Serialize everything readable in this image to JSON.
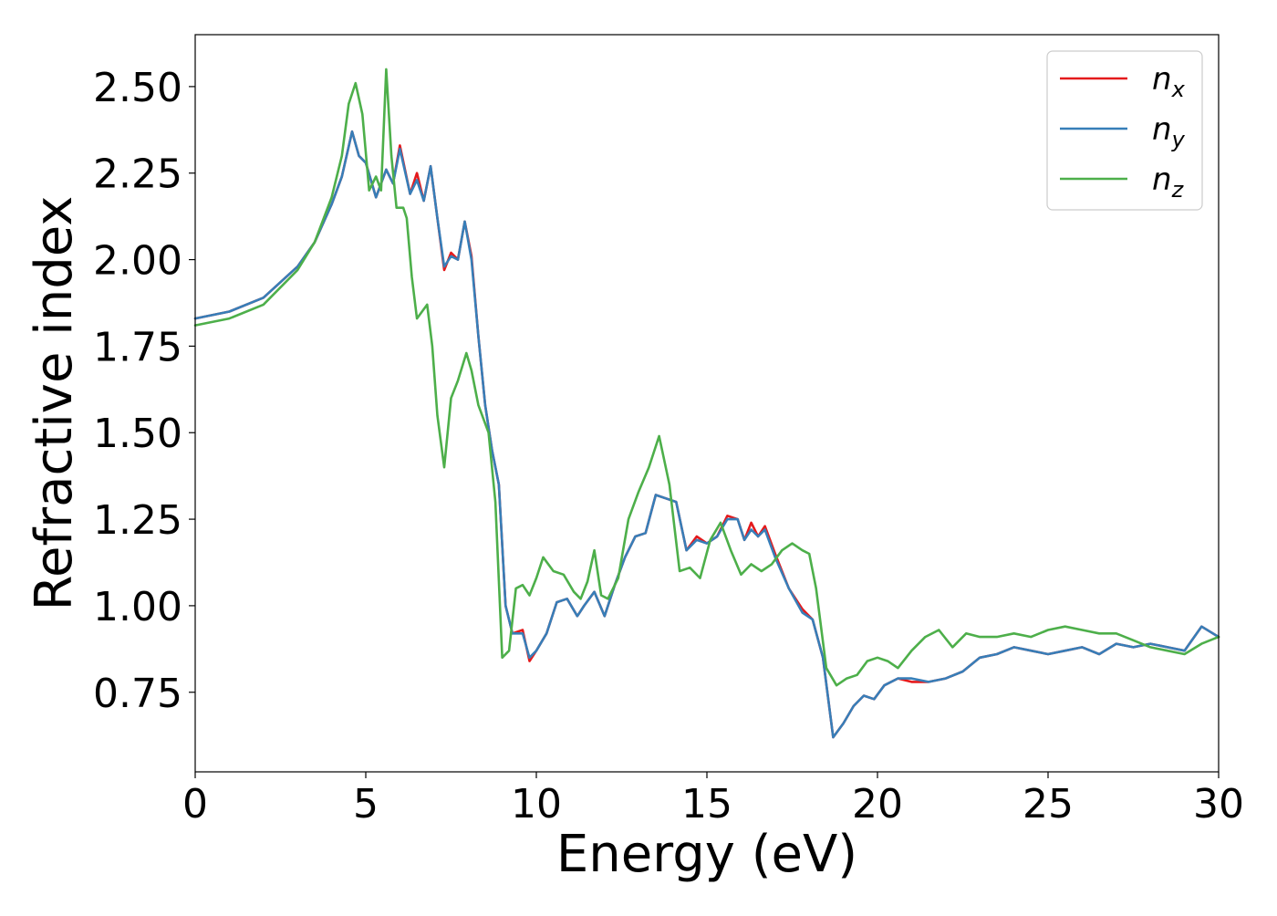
{
  "chart_data": {
    "type": "line",
    "title": "",
    "xlabel": "Energy (eV)",
    "ylabel": "Refractive index",
    "xlim": [
      0,
      30
    ],
    "ylim": [
      0.52,
      2.65
    ],
    "xticks": [
      0,
      5,
      10,
      15,
      20,
      25,
      30
    ],
    "xtick_labels": [
      "0",
      "5",
      "10",
      "15",
      "20",
      "25",
      "30"
    ],
    "yticks": [
      0.75,
      1.0,
      1.25,
      1.5,
      1.75,
      2.0,
      2.25,
      2.5
    ],
    "ytick_labels": [
      "0.75",
      "1.00",
      "1.25",
      "1.50",
      "1.75",
      "2.00",
      "2.25",
      "2.50"
    ],
    "grid": false,
    "legend_position": "top-right",
    "series": [
      {
        "name": "n_x",
        "legend_base": "n",
        "legend_sub": "x",
        "color": "#e41a1c",
        "x": [
          0,
          1,
          2,
          3,
          3.5,
          4,
          4.3,
          4.6,
          4.8,
          5.0,
          5.3,
          5.6,
          5.8,
          6.0,
          6.3,
          6.5,
          6.7,
          6.9,
          7.1,
          7.3,
          7.5,
          7.7,
          7.9,
          8.1,
          8.3,
          8.5,
          8.7,
          8.9,
          9.1,
          9.3,
          9.6,
          9.8,
          10.0,
          10.3,
          10.6,
          10.9,
          11.2,
          11.4,
          11.7,
          12.0,
          12.3,
          12.6,
          12.9,
          13.2,
          13.5,
          13.8,
          14.1,
          14.4,
          14.7,
          15.0,
          15.3,
          15.6,
          15.9,
          16.1,
          16.3,
          16.5,
          16.7,
          17.0,
          17.4,
          17.8,
          18.1,
          18.4,
          18.7,
          19.0,
          19.3,
          19.6,
          19.9,
          20.2,
          20.6,
          21.0,
          21.5,
          22.0,
          22.5,
          23.0,
          23.5,
          24.0,
          24.5,
          25.0,
          25.5,
          26.0,
          26.5,
          27.0,
          27.5,
          28.0,
          28.5,
          29.0,
          29.5,
          30.0
        ],
        "y": [
          1.83,
          1.85,
          1.89,
          1.98,
          2.05,
          2.16,
          2.24,
          2.37,
          2.3,
          2.28,
          2.18,
          2.26,
          2.22,
          2.33,
          2.19,
          2.25,
          2.17,
          2.27,
          2.12,
          1.97,
          2.02,
          2.0,
          2.11,
          2.01,
          1.78,
          1.58,
          1.45,
          1.35,
          1.0,
          0.92,
          0.93,
          0.84,
          0.87,
          0.92,
          1.01,
          1.02,
          0.97,
          1.0,
          1.04,
          0.97,
          1.06,
          1.14,
          1.2,
          1.21,
          1.32,
          1.31,
          1.3,
          1.16,
          1.2,
          1.18,
          1.2,
          1.26,
          1.25,
          1.19,
          1.24,
          1.2,
          1.23,
          1.15,
          1.05,
          0.99,
          0.96,
          0.85,
          0.62,
          0.66,
          0.71,
          0.74,
          0.73,
          0.77,
          0.79,
          0.78,
          0.78,
          0.79,
          0.81,
          0.85,
          0.86,
          0.88,
          0.87,
          0.86,
          0.87,
          0.88,
          0.86,
          0.89,
          0.88,
          0.89,
          0.88,
          0.87,
          0.94,
          0.91
        ]
      },
      {
        "name": "n_y",
        "legend_base": "n",
        "legend_sub": "y",
        "color": "#377eb8",
        "x": [
          0,
          1,
          2,
          3,
          3.5,
          4,
          4.3,
          4.6,
          4.8,
          5.0,
          5.3,
          5.6,
          5.8,
          6.0,
          6.3,
          6.5,
          6.7,
          6.9,
          7.1,
          7.3,
          7.5,
          7.7,
          7.9,
          8.1,
          8.3,
          8.5,
          8.7,
          8.9,
          9.1,
          9.3,
          9.6,
          9.8,
          10.0,
          10.3,
          10.6,
          10.9,
          11.2,
          11.4,
          11.7,
          12.0,
          12.3,
          12.6,
          12.9,
          13.2,
          13.5,
          13.8,
          14.1,
          14.4,
          14.7,
          15.0,
          15.3,
          15.6,
          15.9,
          16.1,
          16.3,
          16.5,
          16.7,
          17.0,
          17.4,
          17.8,
          18.1,
          18.4,
          18.7,
          19.0,
          19.3,
          19.6,
          19.9,
          20.2,
          20.6,
          21.0,
          21.5,
          22.0,
          22.5,
          23.0,
          23.5,
          24.0,
          24.5,
          25.0,
          25.5,
          26.0,
          26.5,
          27.0,
          27.5,
          28.0,
          28.5,
          29.0,
          29.5,
          30.0
        ],
        "y": [
          1.83,
          1.85,
          1.89,
          1.98,
          2.05,
          2.16,
          2.24,
          2.37,
          2.3,
          2.28,
          2.18,
          2.26,
          2.22,
          2.32,
          2.19,
          2.23,
          2.17,
          2.27,
          2.12,
          1.98,
          2.01,
          2.0,
          2.11,
          2.0,
          1.78,
          1.58,
          1.45,
          1.35,
          1.0,
          0.92,
          0.92,
          0.85,
          0.87,
          0.92,
          1.01,
          1.02,
          0.97,
          1.0,
          1.04,
          0.97,
          1.06,
          1.14,
          1.2,
          1.21,
          1.32,
          1.31,
          1.3,
          1.16,
          1.19,
          1.18,
          1.2,
          1.25,
          1.25,
          1.19,
          1.22,
          1.2,
          1.22,
          1.14,
          1.05,
          0.98,
          0.96,
          0.85,
          0.62,
          0.66,
          0.71,
          0.74,
          0.73,
          0.77,
          0.79,
          0.79,
          0.78,
          0.79,
          0.81,
          0.85,
          0.86,
          0.88,
          0.87,
          0.86,
          0.87,
          0.88,
          0.86,
          0.89,
          0.88,
          0.89,
          0.88,
          0.87,
          0.94,
          0.91
        ]
      },
      {
        "name": "n_z",
        "legend_base": "n",
        "legend_sub": "z",
        "color": "#4daf4a",
        "x": [
          0,
          1,
          2,
          3,
          3.5,
          4,
          4.3,
          4.5,
          4.7,
          4.9,
          5.1,
          5.3,
          5.45,
          5.6,
          5.75,
          5.9,
          6.1,
          6.2,
          6.35,
          6.5,
          6.65,
          6.8,
          6.95,
          7.1,
          7.3,
          7.5,
          7.7,
          7.95,
          8.1,
          8.3,
          8.6,
          8.8,
          9.0,
          9.2,
          9.4,
          9.6,
          9.8,
          10.0,
          10.2,
          10.5,
          10.8,
          11.1,
          11.3,
          11.5,
          11.7,
          11.9,
          12.1,
          12.4,
          12.7,
          13.0,
          13.3,
          13.6,
          13.9,
          14.2,
          14.5,
          14.8,
          15.1,
          15.4,
          15.7,
          16.0,
          16.3,
          16.6,
          16.9,
          17.2,
          17.5,
          17.8,
          18.0,
          18.2,
          18.5,
          18.8,
          19.1,
          19.4,
          19.7,
          20.0,
          20.3,
          20.6,
          21.0,
          21.4,
          21.8,
          22.2,
          22.6,
          23.0,
          23.5,
          24.0,
          24.5,
          25.0,
          25.5,
          26.0,
          26.5,
          27.0,
          27.5,
          28.0,
          28.5,
          29.0,
          29.5,
          30.0
        ],
        "y": [
          1.81,
          1.83,
          1.87,
          1.97,
          2.05,
          2.18,
          2.3,
          2.45,
          2.51,
          2.42,
          2.2,
          2.24,
          2.2,
          2.55,
          2.3,
          2.15,
          2.15,
          2.12,
          1.95,
          1.83,
          1.85,
          1.87,
          1.75,
          1.55,
          1.4,
          1.6,
          1.65,
          1.73,
          1.68,
          1.58,
          1.5,
          1.3,
          0.85,
          0.87,
          1.05,
          1.06,
          1.03,
          1.08,
          1.14,
          1.1,
          1.09,
          1.04,
          1.02,
          1.07,
          1.16,
          1.03,
          1.02,
          1.08,
          1.25,
          1.33,
          1.4,
          1.49,
          1.35,
          1.1,
          1.11,
          1.08,
          1.19,
          1.24,
          1.16,
          1.09,
          1.12,
          1.1,
          1.12,
          1.16,
          1.18,
          1.16,
          1.15,
          1.05,
          0.82,
          0.77,
          0.79,
          0.8,
          0.84,
          0.85,
          0.84,
          0.82,
          0.87,
          0.91,
          0.93,
          0.88,
          0.92,
          0.91,
          0.91,
          0.92,
          0.91,
          0.93,
          0.94,
          0.93,
          0.92,
          0.92,
          0.9,
          0.88,
          0.87,
          0.86,
          0.89,
          0.91
        ]
      }
    ]
  }
}
